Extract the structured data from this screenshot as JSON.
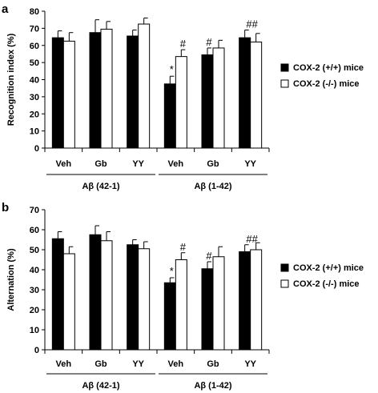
{
  "chart_data": [
    {
      "type": "bar",
      "panel_label": "a",
      "ylabel": "Recognition index (%)",
      "ylim": [
        0,
        80
      ],
      "yticks": [
        0,
        10,
        20,
        30,
        40,
        50,
        60,
        70,
        80
      ],
      "categories": [
        "Veh",
        "Gb",
        "YY",
        "Veh",
        "Gb",
        "YY"
      ],
      "groups": [
        {
          "label": "Aβ (42-1)",
          "span": [
            0,
            2
          ]
        },
        {
          "label": "Aβ (1-42)",
          "span": [
            3,
            5
          ]
        }
      ],
      "series": [
        {
          "name": "COX-2 (+/+) mice",
          "color": "#000000",
          "values": [
            64.5,
            67.5,
            65.5,
            37.5,
            54.5,
            64.5
          ],
          "errors": [
            4.0,
            7.5,
            3.5,
            4.5,
            4.0,
            4.5
          ]
        },
        {
          "name": "COX-2 (-/-) mice",
          "color": "#ffffff",
          "values": [
            62.5,
            69.5,
            72.5,
            53.5,
            58.5,
            62.0
          ],
          "errors": [
            5.0,
            4.5,
            3.5,
            4.0,
            4.5,
            5.0
          ]
        }
      ],
      "annotations": [
        {
          "index": 3,
          "series": 0,
          "text": "*"
        },
        {
          "index": 3,
          "series": 1,
          "text": "#"
        },
        {
          "index": 4,
          "series": 0,
          "text": "#"
        },
        {
          "index": 5,
          "series": 0,
          "text": "##"
        }
      ],
      "legend_position": "right"
    },
    {
      "type": "bar",
      "panel_label": "b",
      "ylabel": "Alternation (%)",
      "ylim": [
        0,
        70
      ],
      "yticks": [
        0,
        10,
        20,
        30,
        40,
        50,
        60,
        70
      ],
      "categories": [
        "Veh",
        "Gb",
        "YY",
        "Veh",
        "Gb",
        "YY"
      ],
      "groups": [
        {
          "label": "Aβ (42-1)",
          "span": [
            0,
            2
          ]
        },
        {
          "label": "Aβ (1-42)",
          "span": [
            3,
            5
          ]
        }
      ],
      "series": [
        {
          "name": "COX-2 (+/+) mice",
          "color": "#000000",
          "values": [
            55.5,
            57.5,
            52.5,
            33.5,
            40.5,
            49.0
          ],
          "errors": [
            3.5,
            4.5,
            2.5,
            2.5,
            3.5,
            3.5
          ]
        },
        {
          "name": "COX-2 (-/-) mice",
          "color": "#ffffff",
          "values": [
            48.0,
            54.5,
            50.5,
            45.0,
            46.5,
            50.0
          ],
          "errors": [
            3.5,
            4.5,
            3.5,
            3.5,
            5.0,
            3.5
          ]
        }
      ],
      "annotations": [
        {
          "index": 3,
          "series": 0,
          "text": "*"
        },
        {
          "index": 3,
          "series": 1,
          "text": "#"
        },
        {
          "index": 4,
          "series": 0,
          "text": "#"
        },
        {
          "index": 5,
          "series": 0,
          "text": "##"
        }
      ],
      "legend_position": "right"
    }
  ]
}
